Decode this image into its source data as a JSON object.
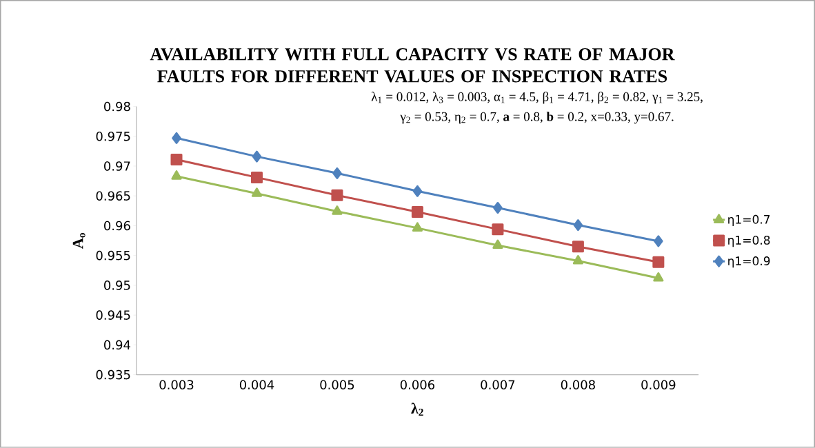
{
  "chart_data": {
    "type": "line",
    "title": "AVAILABILITY WITH FULL CAPACITY VS RATE OF MAJOR FAULTS FOR DIFFERENT VALUES OF INSPECTION RATES",
    "xlabel": "**λ$_{2}$**",
    "ylabel": "**A$_{o}$**",
    "annotations": [
      "λ$_{1}$ =  0.012, λ$_{3}$ = 0.003, α$_{1}$ = 4.5, β$_{1}$ = 4.71, β$_{2}$ = 0.82, γ$_{1}$ = 3.25,",
      "γ$_{2}$ = 0.53,  η$_{2}$ = 0.7,  **a** = 0.8,  **b** = 0.2,  x=0.33, y=0.67."
    ],
    "categories": [
      "0.003",
      "0.004",
      "0.005",
      "0.006",
      "0.007",
      "0.008",
      "0.009"
    ],
    "series": [
      {
        "name": "η1=0.7",
        "color": "#9bbb59",
        "marker": "triangle",
        "values": [
          0.9683,
          0.9654,
          0.9624,
          0.9596,
          0.9567,
          0.9541,
          0.9512
        ]
      },
      {
        "name": "η1=0.8",
        "color": "#c0504d",
        "marker": "square",
        "values": [
          0.9711,
          0.9681,
          0.9651,
          0.9623,
          0.9594,
          0.9565,
          0.9539
        ]
      },
      {
        "name": "η1=0.9",
        "color": "#4f81bd",
        "marker": "diamond",
        "values": [
          0.9747,
          0.9716,
          0.9688,
          0.9658,
          0.963,
          0.9601,
          0.9574
        ]
      }
    ],
    "ylim": [
      0.935,
      0.98
    ],
    "yticks": [
      0.935,
      0.94,
      0.945,
      0.95,
      0.955,
      0.96,
      0.965,
      0.97,
      0.975,
      0.98
    ],
    "grid": false,
    "legend": "right",
    "line_style": "solid"
  }
}
